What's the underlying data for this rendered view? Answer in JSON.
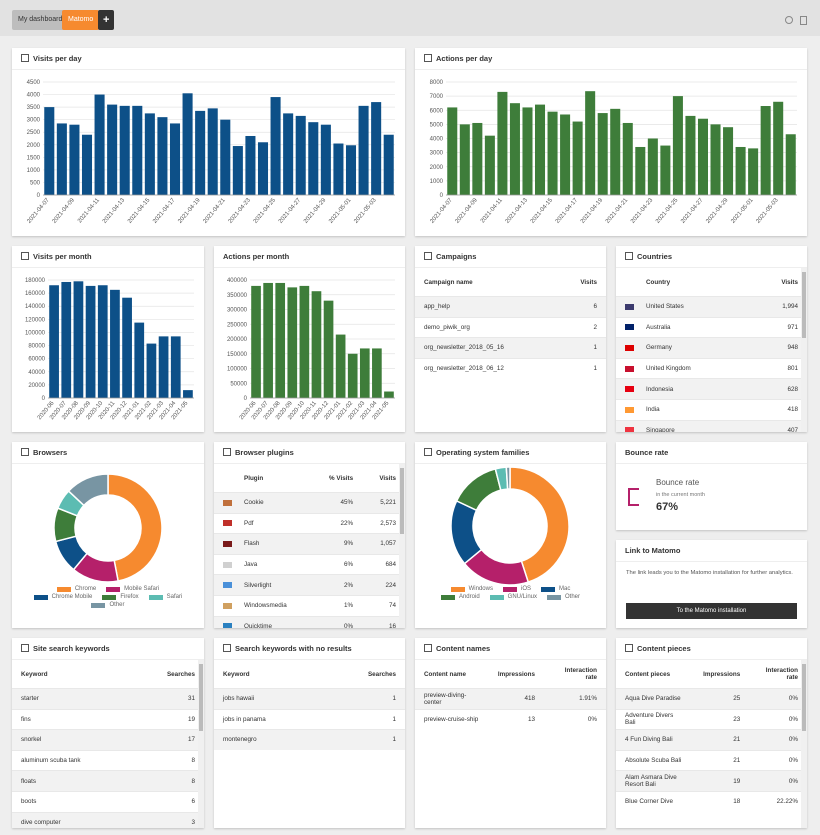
{
  "tabs": [
    "My dashboard",
    "Matomo"
  ],
  "add_button": "+",
  "chart_data": [
    {
      "type": "bar",
      "title": "Visits per day",
      "color": "#0d5088",
      "grid": true,
      "categories": [
        "2021-04-07",
        null,
        "2021-04-09",
        null,
        "2021-04-11",
        null,
        "2021-04-13",
        null,
        "2021-04-15",
        null,
        "2021-04-17",
        null,
        "2021-04-19",
        null,
        "2021-04-21",
        null,
        "2021-04-23",
        null,
        "2021-04-25",
        null,
        "2021-04-27",
        null,
        "2021-04-29",
        null,
        "2021-05-01",
        null,
        "2021-05-03",
        null
      ],
      "values": [
        3500,
        2850,
        2800,
        2400,
        4000,
        3600,
        3550,
        3550,
        3250,
        3100,
        2850,
        4050,
        3350,
        3450,
        3000,
        1950,
        2350,
        2100,
        3900,
        3250,
        3150,
        2900,
        2800,
        2050,
        1980,
        3550,
        3700,
        2400
      ],
      "ylim": [
        0,
        4500
      ],
      "yticks": [
        0,
        500,
        1000,
        1500,
        2000,
        2500,
        3000,
        3500,
        4000,
        4500
      ]
    },
    {
      "type": "bar",
      "title": "Actions per day",
      "color": "#3e7d3a",
      "grid": true,
      "categories": [
        "2021-04-07",
        null,
        "2021-04-09",
        null,
        "2021-04-11",
        null,
        "2021-04-13",
        null,
        "2021-04-15",
        null,
        "2021-04-17",
        null,
        "2021-04-19",
        null,
        "2021-04-21",
        null,
        "2021-04-23",
        null,
        "2021-04-25",
        null,
        "2021-04-27",
        null,
        "2021-04-29",
        null,
        "2021-05-01",
        null,
        "2021-05-03",
        null
      ],
      "values": [
        6200,
        5000,
        5100,
        4200,
        7300,
        6500,
        6200,
        6400,
        5900,
        5700,
        5200,
        7350,
        5800,
        6100,
        5100,
        3400,
        4000,
        3500,
        7000,
        5600,
        5400,
        5000,
        4800,
        3400,
        3300,
        6300,
        6600,
        4300
      ],
      "ylim": [
        0,
        8000
      ],
      "yticks": [
        0,
        1000,
        2000,
        3000,
        4000,
        5000,
        6000,
        7000,
        8000
      ]
    },
    {
      "type": "bar",
      "title": "Visits per month",
      "color": "#0d5088",
      "grid": true,
      "categories": [
        "2020-06",
        "2020-07",
        "2020-08",
        "2020-09",
        "2020-10",
        "2020-11",
        "2020-12",
        "2021-01",
        "2021-02",
        "2021-03",
        "2021-04",
        "2021-05"
      ],
      "values": [
        172000,
        177000,
        178000,
        171000,
        172000,
        165000,
        153000,
        115000,
        83000,
        94000,
        94000,
        12000
      ],
      "ylim": [
        0,
        180000
      ],
      "yticks": [
        0,
        20000,
        40000,
        60000,
        80000,
        100000,
        120000,
        140000,
        160000,
        180000
      ]
    },
    {
      "type": "bar",
      "title": "Actions per month",
      "color": "#3e7d3a",
      "grid": true,
      "categories": [
        "2020-06",
        "2020-07",
        "2020-08",
        "2020-09",
        "2020-10",
        "2020-11",
        "2020-12",
        "2021-01",
        "2021-02",
        "2021-03",
        "2021-04",
        "2021-05"
      ],
      "values": [
        380000,
        390000,
        390000,
        375000,
        380000,
        362000,
        330000,
        215000,
        150000,
        168000,
        168000,
        22000
      ],
      "ylim": [
        0,
        400000
      ],
      "yticks": [
        0,
        50000,
        100000,
        150000,
        200000,
        250000,
        300000,
        350000,
        400000
      ]
    },
    {
      "type": "pie",
      "title": "Browsers",
      "categories": [
        "Chrome",
        "Mobile Safari",
        "Chrome Mobile",
        "Firefox",
        "Safari",
        "Other"
      ],
      "values": [
        47,
        14,
        10,
        10,
        6,
        13
      ],
      "colors": [
        "#f68a2f",
        "#b5206a",
        "#0d5088",
        "#3e7d3a",
        "#5cbcb2",
        "#7895a3"
      ]
    },
    {
      "type": "pie",
      "title": "Operating system families",
      "categories": [
        "Windows",
        "iOS",
        "Mac",
        "Android",
        "GNU/Linux",
        "Other"
      ],
      "values": [
        45,
        19,
        18,
        14,
        3,
        1
      ],
      "colors": [
        "#f68a2f",
        "#b5206a",
        "#0d5088",
        "#3e7d3a",
        "#5cbcb2",
        "#7895a3"
      ]
    }
  ],
  "tables": {
    "campaigns": {
      "title": "Campaigns",
      "columns": [
        "Campaign name",
        "Visits"
      ],
      "rows": [
        [
          "app_help",
          "6"
        ],
        [
          "demo_piwik_org",
          "2"
        ],
        [
          "org_newsletter_2018_05_16",
          "1"
        ],
        [
          "org_newsletter_2018_06_12",
          "1"
        ]
      ]
    },
    "countries": {
      "title": "Countries",
      "columns": [
        "Country",
        "Visits"
      ],
      "rows": [
        [
          "United States",
          "1,994"
        ],
        [
          "Australia",
          "971"
        ],
        [
          "Germany",
          "948"
        ],
        [
          "United Kingdom",
          "801"
        ],
        [
          "Indonesia",
          "628"
        ],
        [
          "India",
          "418"
        ],
        [
          "Singapore",
          "407"
        ]
      ]
    },
    "browser_plugins": {
      "title": "Browser plugins",
      "columns": [
        "Plugin",
        "% Visits",
        "Visits"
      ],
      "rows": [
        [
          "Cookie",
          "45%",
          "5,221"
        ],
        [
          "Pdf",
          "22%",
          "2,573"
        ],
        [
          "Flash",
          "9%",
          "1,057"
        ],
        [
          "Java",
          "6%",
          "684"
        ],
        [
          "Silverlight",
          "2%",
          "224"
        ],
        [
          "Windowsmedia",
          "1%",
          "74"
        ],
        [
          "Quicktime",
          "0%",
          "16"
        ]
      ]
    },
    "site_search": {
      "title": "Site search keywords",
      "columns": [
        "Keyword",
        "Searches"
      ],
      "rows": [
        [
          "starter",
          "31"
        ],
        [
          "fins",
          "19"
        ],
        [
          "snorkel",
          "17"
        ],
        [
          "aluminum scuba tank",
          "8"
        ],
        [
          "floats",
          "8"
        ],
        [
          "boots",
          "6"
        ],
        [
          "dive computer",
          "3"
        ]
      ]
    },
    "no_results": {
      "title": "Search keywords with no results",
      "columns": [
        "Keyword",
        "Searches"
      ],
      "rows": [
        [
          "jobs hawaii",
          "1"
        ],
        [
          "jobs in panama",
          "1"
        ],
        [
          "montenegro",
          "1"
        ]
      ]
    },
    "content_names": {
      "title": "Content names",
      "columns": [
        "Content name",
        "Impressions",
        "Interaction rate"
      ],
      "rows": [
        [
          "preview-diving-center",
          "418",
          "1.91%"
        ],
        [
          "preview-cruise-ship",
          "13",
          "0%"
        ]
      ]
    },
    "content_pieces": {
      "title": "Content pieces",
      "columns": [
        "Content pieces",
        "Impressions",
        "Interaction rate"
      ],
      "rows": [
        [
          "Aqua Dive Paradise",
          "25",
          "0%"
        ],
        [
          "Adventure Divers Bali",
          "23",
          "0%"
        ],
        [
          "4 Fun Diving Bali",
          "21",
          "0%"
        ],
        [
          "Absolute Scuba Bali",
          "21",
          "0%"
        ],
        [
          "Alam Asmara Dive Resort Bali",
          "19",
          "0%"
        ],
        [
          "Blue Corner Dive",
          "18",
          "22.22%"
        ]
      ]
    }
  },
  "bounce_rate": {
    "title": "Bounce rate",
    "label": "Bounce rate",
    "sublabel": "in the current month",
    "value": "67%"
  },
  "link": {
    "title": "Link to Matomo",
    "text": "The link leads you to the Matomo installation for further analytics.",
    "button": "To the Matomo installation"
  }
}
